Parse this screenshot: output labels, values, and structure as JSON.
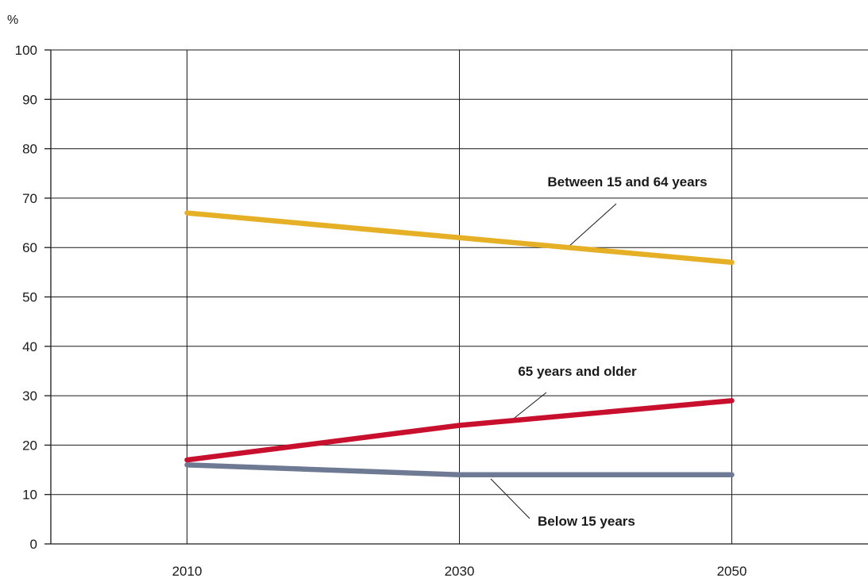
{
  "chart_data": {
    "type": "line",
    "y_unit": "%",
    "x": [
      "2010",
      "2030",
      "2050"
    ],
    "xlim": [
      2000,
      2060
    ],
    "ylim": [
      0,
      100
    ],
    "y_ticks": [
      "0",
      "10",
      "20",
      "30",
      "40",
      "50",
      "60",
      "70",
      "80",
      "90",
      "100"
    ],
    "grid": true,
    "series": [
      {
        "name": "Between 15 and 64 years",
        "color": "#e6b026",
        "values": [
          67,
          62,
          57
        ]
      },
      {
        "name": "65 years and older",
        "color": "#c8102e",
        "values": [
          17,
          24,
          29
        ]
      },
      {
        "name": "Below 15 years",
        "color": "#6e7a93",
        "values": [
          16,
          14,
          14
        ]
      }
    ]
  }
}
